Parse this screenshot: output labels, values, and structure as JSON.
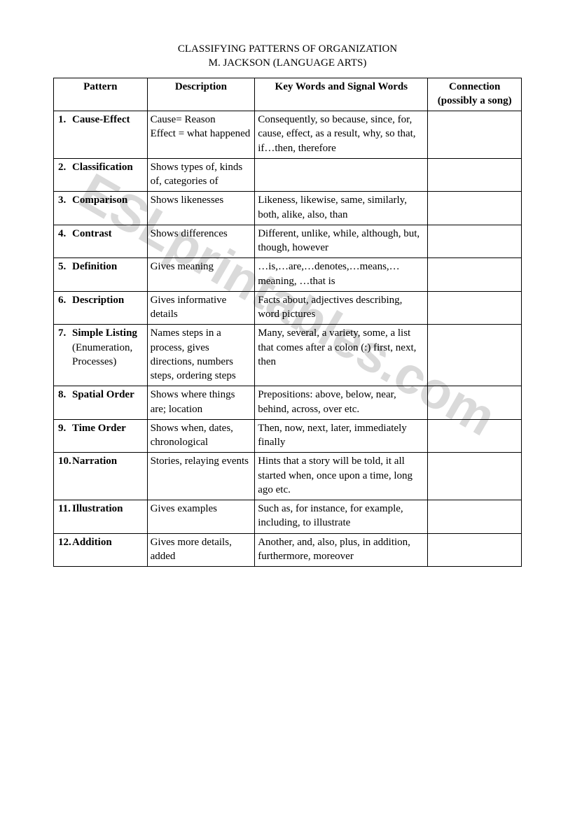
{
  "watermark": "ESLprintables.com",
  "title": {
    "line1": "CLASSIFYING PATTERNS OF ORGANIZATION",
    "line2": "M. JACKSON (LANGUAGE ARTS)"
  },
  "columns": {
    "c1": "Pattern",
    "c2": "Description",
    "c3": "Key Words and Signal Words",
    "c4": "Connection (possibly a song)"
  },
  "rows": [
    {
      "num": "1.",
      "label": "Cause-Effect",
      "sub": "",
      "desc": "Cause= Reason\nEffect = what happened",
      "keywords": "Consequently, so because, since, for, cause, effect, as a result, why, so that, if…then, therefore",
      "conn": ""
    },
    {
      "num": "2.",
      "label": "Classification",
      "sub": "",
      "desc": "Shows types of, kinds of, categories of",
      "keywords": "",
      "conn": ""
    },
    {
      "num": "3.",
      "label": "Comparison",
      "sub": "",
      "desc": "Shows likenesses",
      "keywords": "Likeness, likewise, same, similarly, both, alike, also, than",
      "conn": ""
    },
    {
      "num": "4.",
      "label": "Contrast",
      "sub": "",
      "desc": "Shows differences",
      "keywords": "Different, unlike, while, although, but, though, however",
      "conn": ""
    },
    {
      "num": "5.",
      "label": "Definition",
      "sub": "",
      "desc": "Gives meaning",
      "keywords": "…is,…are,…denotes,…means,… meaning, …that is",
      "conn": ""
    },
    {
      "num": "6.",
      "label": "Description",
      "sub": "",
      "desc": "Gives informative details",
      "keywords": "Facts about, adjectives describing, word pictures",
      "conn": ""
    },
    {
      "num": "7.",
      "label": "Simple Listing",
      "sub": "(Enumeration, Processes)",
      "desc": "Names steps in a process, gives directions, numbers steps, ordering steps",
      "keywords": "Many, several, a variety, some, a list that comes after a colon (:) first, next, then",
      "conn": ""
    },
    {
      "num": "8.",
      "label": "Spatial Order",
      "sub": "",
      "desc": "Shows where things are; location",
      "keywords": "Prepositions:  above, below, near, behind, across, over etc.",
      "conn": ""
    },
    {
      "num": "9.",
      "label": "Time Order",
      "sub": "",
      "desc": "Shows when, dates, chronological",
      "keywords": "Then, now, next, later, immediately finally",
      "conn": ""
    },
    {
      "num": "10.",
      "label": "Narration",
      "sub": "",
      "desc": "Stories, relaying events",
      "keywords": "Hints that a story will be told, it all started when, once upon a time,  long ago etc.",
      "conn": ""
    },
    {
      "num": "11.",
      "label": "Illustration",
      "sub": "",
      "desc": "Gives examples",
      "keywords": "Such as, for instance, for example, including, to illustrate",
      "conn": ""
    },
    {
      "num": "12.",
      "label": "Addition",
      "sub": "",
      "desc": "Gives more details, added",
      "keywords": "Another, and, also, plus, in addition, furthermore, moreover",
      "conn": ""
    }
  ]
}
